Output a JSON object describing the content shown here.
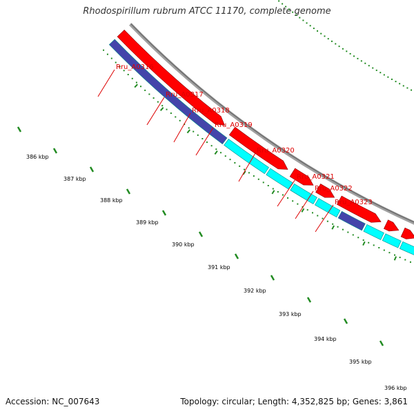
{
  "title": "Rhodospirillum rubrum ATCC 11170, complete genome",
  "footer": {
    "accession": "Accession: NC_007643",
    "summary": "Topology: circular; Length: 4,352,825 bp; Genes: 3,861"
  },
  "colors": {
    "background": "#ffffff",
    "backbone": "#8c8c8c",
    "forward_cds": "#ff0000",
    "reverse_cds": "#00ffff",
    "reverse_other": "#4444aa",
    "highlight": "#0000ff",
    "label": "#dd0000",
    "tick": "#228b22"
  },
  "gene_labels": [
    {
      "name": "Rru_A0316"
    },
    {
      "name": "Rru_A0317"
    },
    {
      "name": "Rru_A0318"
    },
    {
      "name": "Rru_A0319"
    },
    {
      "name": "Rru_A0320"
    },
    {
      "name": "Rru_A0321"
    },
    {
      "name": "Rru_A0322"
    },
    {
      "name": "Rru_A0323"
    }
  ],
  "ticks": [
    {
      "label": "386 kbp"
    },
    {
      "label": "387 kbp"
    },
    {
      "label": "388 kbp"
    },
    {
      "label": "389 kbp"
    },
    {
      "label": "390 kbp"
    },
    {
      "label": "391 kbp"
    },
    {
      "label": "392 kbp"
    },
    {
      "label": "393 kbp"
    },
    {
      "label": "394 kbp"
    },
    {
      "label": "395 kbp"
    },
    {
      "label": "396 kbp"
    }
  ]
}
